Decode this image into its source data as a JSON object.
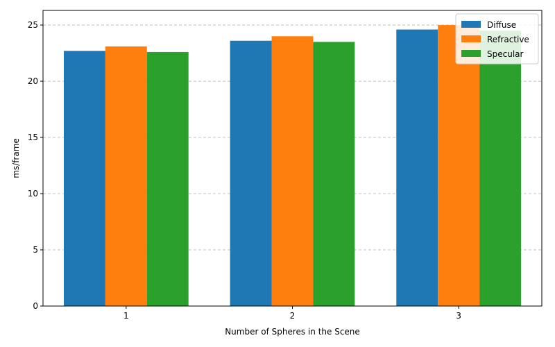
{
  "chart_data": {
    "type": "bar",
    "categories": [
      "1",
      "2",
      "3"
    ],
    "series": [
      {
        "name": "Diffuse",
        "color": "#1f77b4",
        "values": [
          22.7,
          23.6,
          24.6
        ]
      },
      {
        "name": "Refractive",
        "color": "#ff7f0e",
        "values": [
          23.1,
          24.0,
          25.0
        ]
      },
      {
        "name": "Specular",
        "color": "#2ca02c",
        "values": [
          22.6,
          23.5,
          24.5
        ]
      }
    ],
    "xlabel": "Number of Spheres in the Scene",
    "ylabel": "ms/frame",
    "ylim": [
      0,
      26.3
    ],
    "yticks": [
      0,
      5,
      10,
      15,
      20,
      25
    ],
    "grid": "y-dashed",
    "legend_position": "top-right"
  }
}
